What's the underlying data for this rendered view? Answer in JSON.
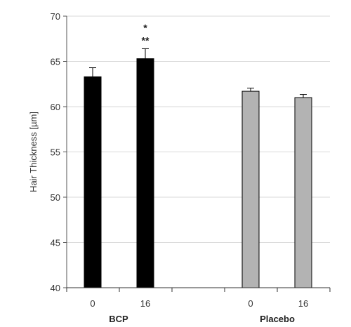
{
  "chart_data": {
    "type": "bar",
    "ylabel": "Hair Thickness [µm]",
    "ylim": [
      40,
      70
    ],
    "yticks": [
      40,
      45,
      50,
      55,
      60,
      65,
      70
    ],
    "grid": true,
    "groups": [
      {
        "name": "BCP",
        "color": "#000000",
        "bars": [
          {
            "category": "0",
            "value": 63.3,
            "error": 1.0,
            "annotations": []
          },
          {
            "category": "16",
            "value": 65.3,
            "error": 1.1,
            "annotations": [
              "*",
              "**"
            ]
          }
        ]
      },
      {
        "name": "Placebo",
        "color": "#b3b3b3",
        "bars": [
          {
            "category": "0",
            "value": 61.7,
            "error": 0.35,
            "annotations": []
          },
          {
            "category": "16",
            "value": 61.0,
            "error": 0.35,
            "annotations": []
          }
        ]
      }
    ]
  }
}
